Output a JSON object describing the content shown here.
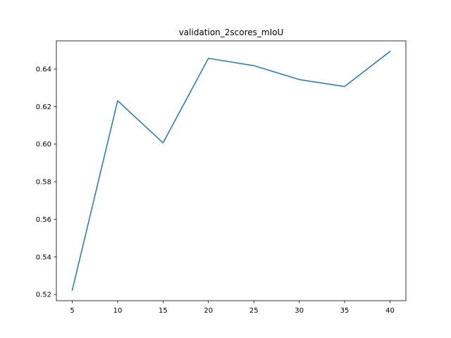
{
  "chart_data": {
    "type": "line",
    "title": "validation_2scores_mIoU",
    "xlabel": "",
    "ylabel": "",
    "x": [
      5,
      10,
      15,
      20,
      25,
      30,
      35,
      40
    ],
    "series": [
      {
        "values": [
          0.5223,
          0.6231,
          0.6007,
          0.6457,
          0.6418,
          0.6344,
          0.6307,
          0.6494
        ],
        "color": "#1f77b4"
      }
    ],
    "xlim": [
      3.25,
      41.75
    ],
    "ylim": [
      0.5167,
      0.655
    ],
    "x_ticks": [
      5,
      10,
      15,
      20,
      25,
      30,
      35,
      40
    ],
    "y_ticks": [
      0.52,
      0.54,
      0.56,
      0.58,
      0.6,
      0.62,
      0.64
    ],
    "y_tick_labels": [
      "0.52",
      "0.54",
      "0.56",
      "0.58",
      "0.60",
      "0.62",
      "0.64"
    ],
    "grid": false,
    "legend": "none"
  }
}
